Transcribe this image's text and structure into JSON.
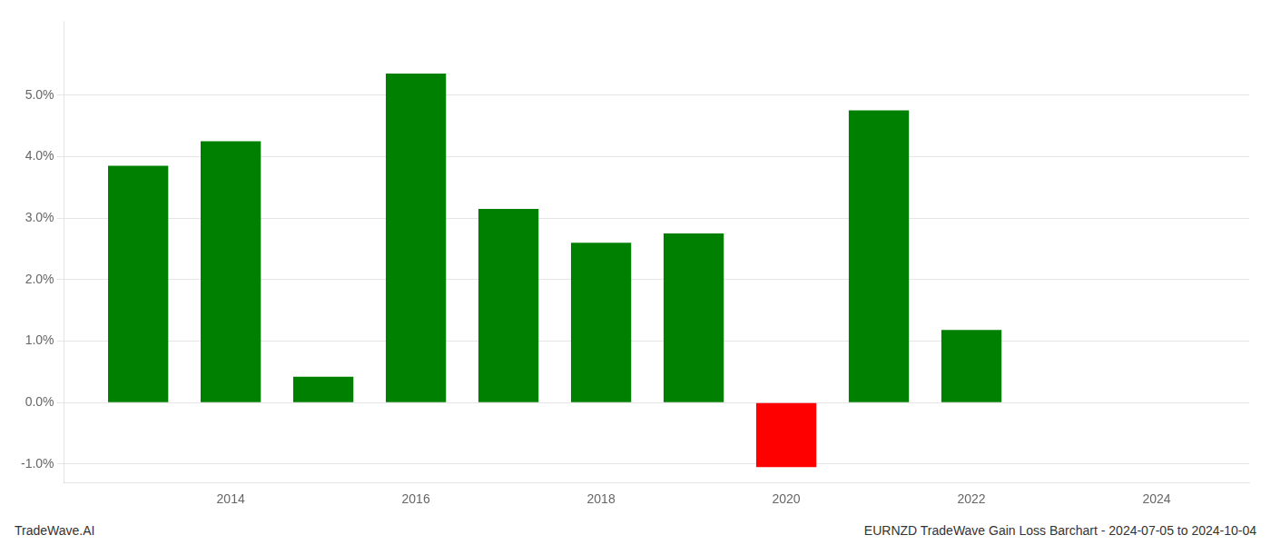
{
  "chart_data": {
    "type": "bar",
    "x": [
      2013,
      2014,
      2015,
      2016,
      2017,
      2018,
      2019,
      2020,
      2021,
      2022
    ],
    "values": [
      0.0385,
      0.0425,
      0.0042,
      0.0535,
      0.0315,
      0.026,
      0.0275,
      -0.0105,
      0.0475,
      0.0118
    ],
    "colors": [
      "#008000",
      "#008000",
      "#008000",
      "#008000",
      "#008000",
      "#008000",
      "#008000",
      "#ff0000",
      "#008000",
      "#008000"
    ],
    "xlim": [
      2012.2,
      2025.0
    ],
    "xticks": [
      2014,
      2016,
      2018,
      2020,
      2022,
      2024
    ],
    "ylim": [
      -0.013,
      0.062
    ],
    "yticks": [
      {
        "value": -0.01,
        "label": "-1.0%"
      },
      {
        "value": 0.0,
        "label": "0.0%"
      },
      {
        "value": 0.01,
        "label": "1.0%"
      },
      {
        "value": 0.02,
        "label": "2.0%"
      },
      {
        "value": 0.03,
        "label": "3.0%"
      },
      {
        "value": 0.04,
        "label": "4.0%"
      },
      {
        "value": 0.05,
        "label": "5.0%"
      }
    ],
    "grid": true,
    "annotations": [
      "TradeWave.AI",
      "EURNZD TradeWave Gain Loss Barchart - 2024-07-05 to 2024-10-04"
    ]
  }
}
